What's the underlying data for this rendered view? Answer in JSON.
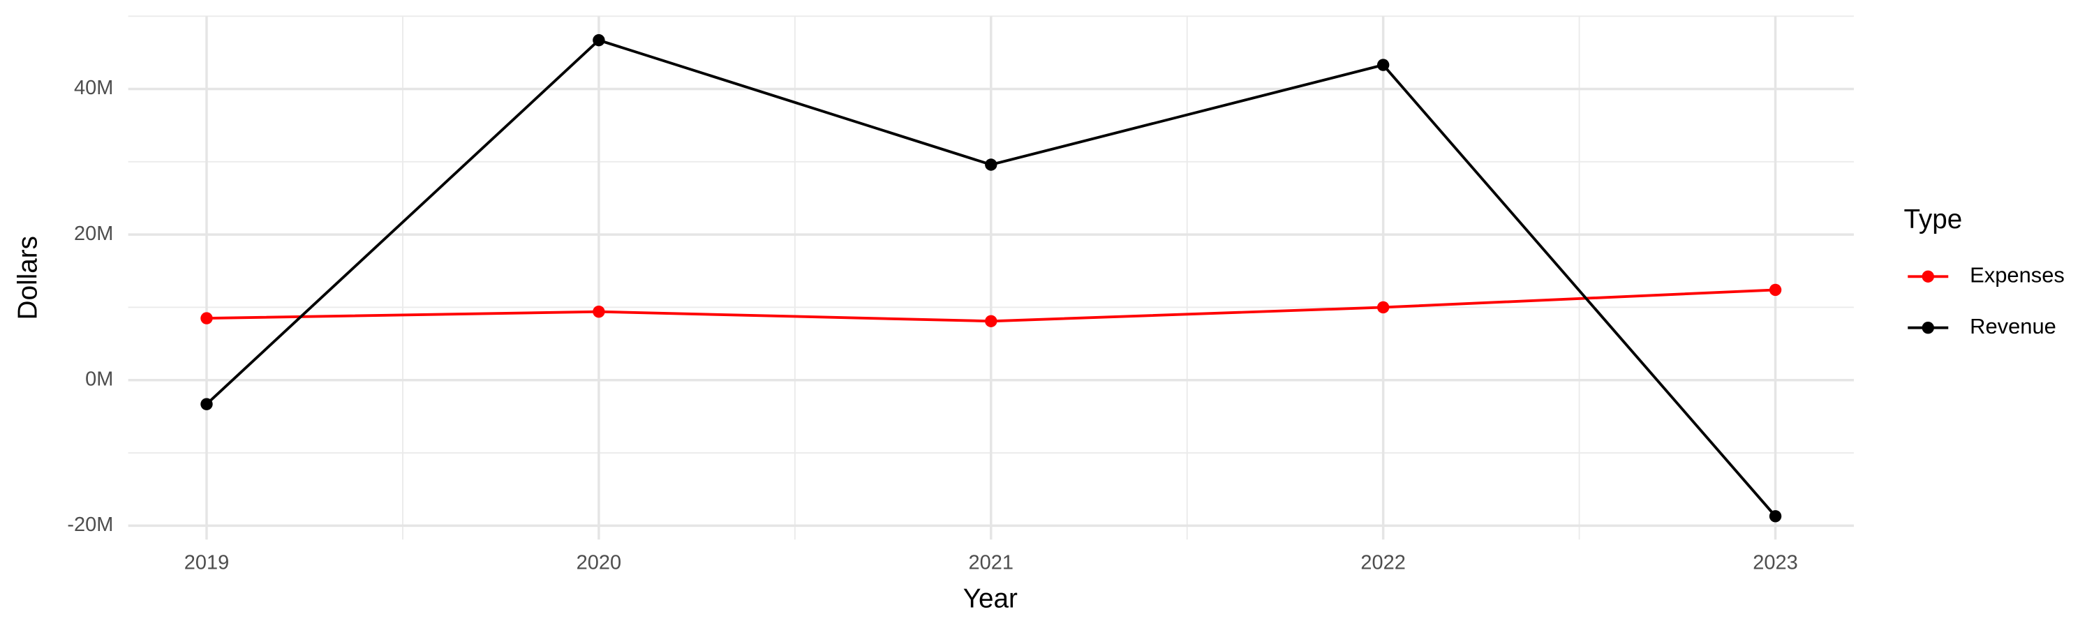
{
  "chart_data": {
    "type": "line",
    "x_label": "Year",
    "y_label": "Dollars",
    "legend_title": "Type",
    "x": [
      2019,
      2020,
      2021,
      2022,
      2023
    ],
    "series": [
      {
        "name": "Expenses",
        "color": "#ff0000",
        "values": [
          8500000,
          9400000,
          8100000,
          10000000,
          12400000
        ]
      },
      {
        "name": "Revenue",
        "color": "#000000",
        "values": [
          -3300000,
          46700000,
          29600000,
          43300000,
          -18700000
        ]
      }
    ],
    "xlim": [
      2018.8,
      2023.2
    ],
    "xticks": [
      2019,
      2020,
      2021,
      2022,
      2023
    ],
    "ylim": [
      -21900000,
      50000000
    ],
    "yticks": [
      {
        "value": -20000000,
        "label": "-20M"
      },
      {
        "value": 0,
        "label": "0M"
      },
      {
        "value": 20000000,
        "label": "20M"
      },
      {
        "value": 40000000,
        "label": "40M"
      }
    ],
    "grid": true,
    "legend": "right"
  }
}
